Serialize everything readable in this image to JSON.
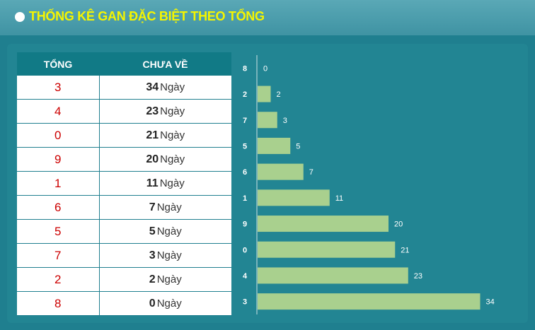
{
  "header": {
    "title": "THỐNG KÊ GAN ĐẶC BIỆT THEO TỔNG"
  },
  "table": {
    "columns": [
      "TỔNG",
      "CHƯA VỀ"
    ],
    "unit": "Ngày",
    "rows": [
      {
        "sum": "3",
        "days": "34"
      },
      {
        "sum": "4",
        "days": "23"
      },
      {
        "sum": "0",
        "days": "21"
      },
      {
        "sum": "9",
        "days": "20"
      },
      {
        "sum": "1",
        "days": "11"
      },
      {
        "sum": "6",
        "days": "7"
      },
      {
        "sum": "5",
        "days": "5"
      },
      {
        "sum": "7",
        "days": "3"
      },
      {
        "sum": "2",
        "days": "2"
      },
      {
        "sum": "8",
        "days": "0"
      }
    ]
  },
  "chart_data": {
    "type": "bar",
    "orientation": "horizontal",
    "categories": [
      "8",
      "2",
      "7",
      "5",
      "6",
      "1",
      "9",
      "0",
      "4",
      "3"
    ],
    "values": [
      0,
      2,
      3,
      5,
      7,
      11,
      20,
      21,
      23,
      34
    ],
    "title": "",
    "xlabel": "",
    "ylabel": "",
    "grid": false,
    "bar_color": "#a9d08e"
  }
}
